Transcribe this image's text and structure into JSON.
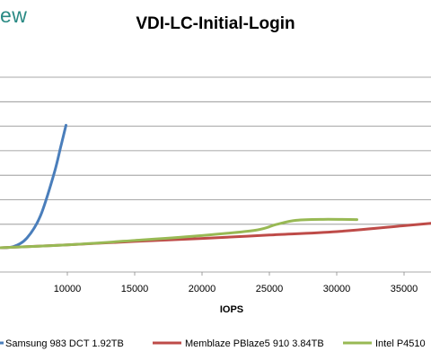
{
  "brand": {
    "text": "ew"
  },
  "chart_data": {
    "type": "line",
    "title": "VDI-LC-Initial-Login",
    "xlabel": "IOPS",
    "ylabel": "",
    "xlim": [
      5000,
      37000
    ],
    "x_ticks": [
      10000,
      15000,
      20000,
      25000,
      30000,
      35000
    ],
    "y_gridlines": 7,
    "grid": true,
    "legend": "bottom",
    "series": [
      {
        "name": "Samsung 983 DCT 1.92TB",
        "color": "#4a7ebb",
        "points": [
          [
            5000,
            0.0
          ],
          [
            6000,
            0.05
          ],
          [
            7000,
            0.4
          ],
          [
            8000,
            1.3
          ],
          [
            9000,
            3.0
          ],
          [
            9500,
            4.1
          ],
          [
            9900,
            5.0
          ]
        ]
      },
      {
        "name": "Memblaze PBlaze5 910 3.84TB",
        "color": "#be4b48",
        "points": [
          [
            5000,
            0.0
          ],
          [
            10000,
            0.12
          ],
          [
            15000,
            0.26
          ],
          [
            20000,
            0.38
          ],
          [
            25000,
            0.52
          ],
          [
            30000,
            0.66
          ],
          [
            35000,
            0.9
          ],
          [
            37000,
            1.0
          ]
        ]
      },
      {
        "name": "Intel P4510",
        "color": "#98b954",
        "points": [
          [
            5000,
            0.0
          ],
          [
            10000,
            0.12
          ],
          [
            15000,
            0.3
          ],
          [
            20000,
            0.5
          ],
          [
            24000,
            0.72
          ],
          [
            25500,
            0.95
          ],
          [
            27000,
            1.12
          ],
          [
            29000,
            1.16
          ],
          [
            31500,
            1.15
          ]
        ]
      }
    ]
  }
}
